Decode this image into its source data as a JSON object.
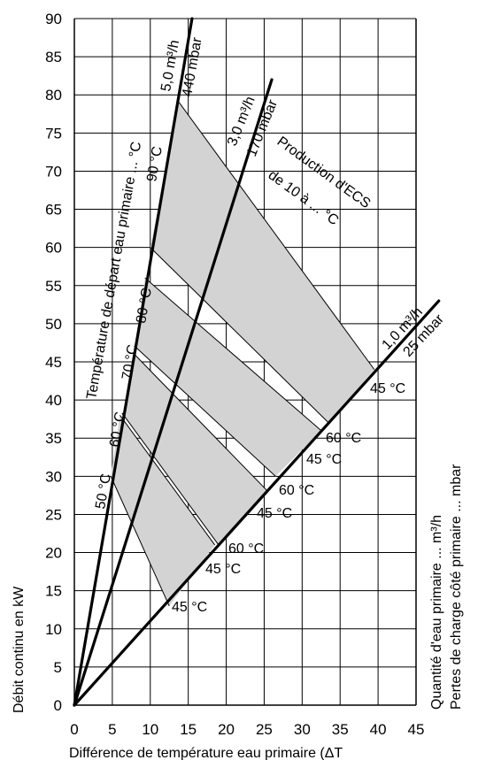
{
  "chart_data": {
    "type": "line",
    "xlabel": "Différence de température eau primaire (ΔT",
    "ylabel": "Débit continu en kW",
    "right_label_1": "Quantité d'eau primaire ... m³/h",
    "right_label_2": "Pertes de charge côté primaire ... mbar",
    "xlim": [
      0,
      45
    ],
    "ylim": [
      0,
      90
    ],
    "x_ticks": [
      "0",
      "5",
      "10",
      "15",
      "20",
      "25",
      "30",
      "35",
      "40",
      "45"
    ],
    "y_ticks": [
      "0",
      "5",
      "10",
      "15",
      "20",
      "25",
      "30",
      "35",
      "40",
      "45",
      "50",
      "55",
      "60",
      "65",
      "70",
      "75",
      "80",
      "85",
      "90"
    ],
    "grid": true,
    "flow_lines": [
      {
        "flow": "5,0 m³/h",
        "pressure": "440 mbar",
        "points": [
          [
            0,
            0
          ],
          [
            15.5,
            90
          ]
        ]
      },
      {
        "flow": "3,0 m³/h",
        "pressure": "170 mbar",
        "points": [
          [
            0,
            0
          ],
          [
            26,
            82
          ]
        ]
      },
      {
        "flow": "1,0 m³/h",
        "pressure": "25 mbar",
        "points": [
          [
            0,
            0
          ],
          [
            48,
            53
          ]
        ]
      }
    ],
    "production_bands": [
      {
        "label_high": "",
        "label_low": "45 °C",
        "top": [
          [
            13.8,
            79
          ],
          [
            39.5,
            44
          ]
        ],
        "bottom": [
          [
            10.0,
            60
          ],
          [
            33.5,
            37
          ]
        ]
      },
      {
        "label_high": "60 °C",
        "label_low": "45 °C",
        "top": [
          [
            9.3,
            56
          ],
          [
            32.5,
            36
          ]
        ],
        "bottom": [
          [
            8.0,
            47
          ],
          [
            26.5,
            30
          ]
        ]
      },
      {
        "label_high": "60 °C",
        "label_low": "45 °C",
        "top": [
          [
            7.9,
            46
          ],
          [
            25.5,
            28
          ]
        ],
        "bottom": [
          [
            6.5,
            38
          ],
          [
            19.0,
            21
          ]
        ]
      },
      {
        "label_high": "60 °C",
        "label_low": "45 °C",
        "top": [
          [
            6.0,
            38
          ],
          [
            18.5,
            21
          ]
        ],
        "bottom": [
          [
            4.8,
            30
          ],
          [
            12.5,
            13
          ]
        ]
      }
    ],
    "labels": {
      "supply_temp_title": "Température de départ eau primaire ... °C",
      "production_title": "Production d'ECS",
      "production_sub": "de 10 à ... °C",
      "flow_5": "5,0 m³/h",
      "press_5": "440 mbar",
      "flow_3": "3,0 m³/h",
      "press_3": "170 mbar",
      "flow_1": "1,0 m³/h",
      "press_1": "25 mbar",
      "t90": "90 °C",
      "t80": "80 °C",
      "t70": "70 °C",
      "t60": "60 °C",
      "t50": "50 °C",
      "b1_low": "45 °C",
      "b2_high": "60 °C",
      "b2_low": "45 °C",
      "b3_high": "60 °C",
      "b3_low": "45 °C",
      "b4_high": "60 °C",
      "b4_low": "45 °C",
      "b5_low": "45 °C"
    }
  }
}
